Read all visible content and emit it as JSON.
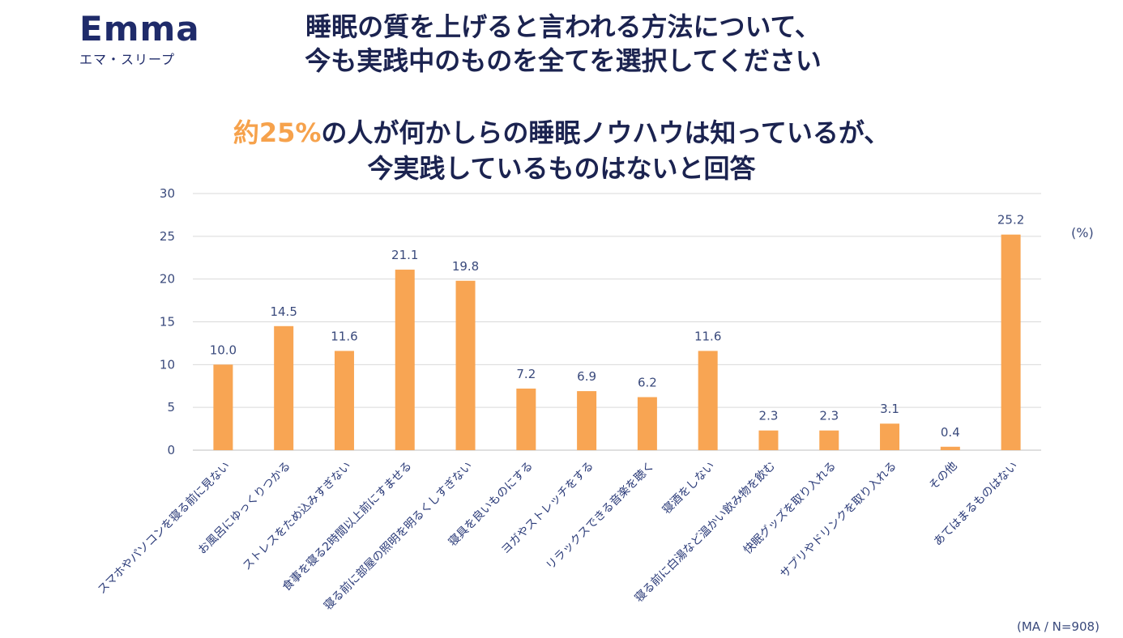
{
  "brand": {
    "name": "Emma",
    "subtitle": "エマ・スリープ"
  },
  "title": {
    "line1": "睡眠の質を上げると言われる方法について、",
    "line2": "今も実践中のものを全てを選択してください"
  },
  "subtitle": {
    "accent": "約25%",
    "line1_rest": "の人が何かしらの睡眠ノウハウは知っているが、",
    "line2": "今実践しているものはないと回答"
  },
  "unit_label": "(%)",
  "footnote": "(MA / N=908)",
  "colors": {
    "bar": "#F8A553",
    "accent": "#F6A24C",
    "grid": "#D9D9D9",
    "text": "#1B2350"
  },
  "chart_data": {
    "type": "bar",
    "categories": [
      "スマホやパソコンを寝る前に見ない",
      "お風呂にゆっくりつかる",
      "ストレスをため込みすぎない",
      "食事を寝る2時間以上前にすませる",
      "寝る前に部屋の照明を明るくしすぎない",
      "寝具を良いものにする",
      "ヨガやストレッチをする",
      "リラックスできる音楽を聴く",
      "寝酒をしない",
      "寝る前に白湯など温かい飲み物を飲む",
      "快眠グッズを取り入れる",
      "サプリやドリンクを取り入れる",
      "その他",
      "あてはまるものはない"
    ],
    "values": [
      10.0,
      14.5,
      11.6,
      21.1,
      19.8,
      7.2,
      6.9,
      6.2,
      11.6,
      2.3,
      2.3,
      3.1,
      0.4,
      25.2
    ],
    "value_labels": [
      "10.0",
      "14.5",
      "11.6",
      "21.1",
      "19.8",
      "7.2",
      "6.9",
      "6.2",
      "11.6",
      "2.3",
      "2.3",
      "3.1",
      "0.4",
      "25.2"
    ],
    "yticks": [
      "0",
      "5",
      "10",
      "15",
      "20",
      "25",
      "30"
    ],
    "ylim": [
      0,
      30
    ],
    "ylabel": "(%)",
    "grid": true
  }
}
